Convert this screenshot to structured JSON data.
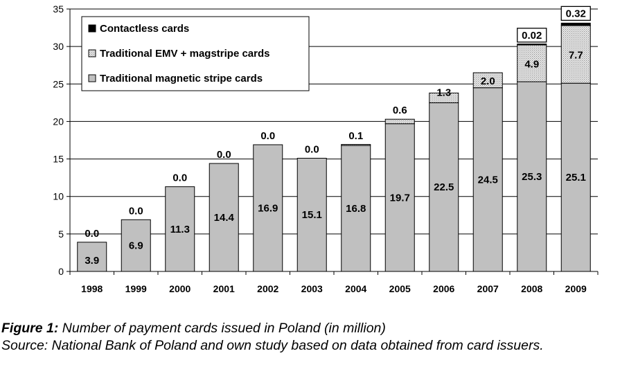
{
  "chart_data": {
    "type": "bar",
    "stacked": true,
    "categories": [
      "1998",
      "1999",
      "2000",
      "2001",
      "2002",
      "2003",
      "2004",
      "2005",
      "2006",
      "2007",
      "2008",
      "2009"
    ],
    "series": [
      {
        "name": "Traditional magnetic stripe cards",
        "values": [
          3.9,
          6.9,
          11.3,
          14.4,
          16.9,
          15.1,
          16.8,
          19.7,
          22.5,
          24.5,
          25.3,
          25.1
        ],
        "labels": [
          "3.9",
          "6.9",
          "11.3",
          "14.4",
          "16.9",
          "15.1",
          "16.8",
          "19.7",
          "22.5",
          "24.5",
          "25.3",
          "25.1"
        ],
        "color": "#c0c0c0"
      },
      {
        "name": "Traditional EMV + magstripe cards",
        "values": [
          0.0,
          0.0,
          0.0,
          0.0,
          0.0,
          0.0,
          0.1,
          0.6,
          1.3,
          2.0,
          4.9,
          7.7
        ],
        "labels": [
          "0.0",
          "0.0",
          "0.0",
          "0.0",
          "0.0",
          "0.0",
          "0.1",
          "0.6",
          "1.3",
          "2.0",
          "4.9",
          "7.7"
        ],
        "color": "#d8d8d8"
      },
      {
        "name": "Contactless cards",
        "values": [
          0,
          0,
          0,
          0,
          0,
          0,
          0,
          0,
          0,
          0,
          0.02,
          0.32
        ],
        "labels": [
          "",
          "",
          "",
          "",
          "",
          "",
          "",
          "",
          "",
          "",
          "0.02",
          "0.32"
        ],
        "color": "#000000"
      }
    ],
    "ylim": [
      0,
      35
    ],
    "yticks": [
      "0",
      "5",
      "10",
      "15",
      "20",
      "25",
      "30",
      "35"
    ],
    "grid": true,
    "legend_position": "top-left"
  },
  "caption": {
    "figure_label": "Figure 1:",
    "figure_text": "Number of payment cards issued in Poland (in million)",
    "source_text": "Source: National Bank of Poland and own study based on data obtained from card issuers."
  }
}
